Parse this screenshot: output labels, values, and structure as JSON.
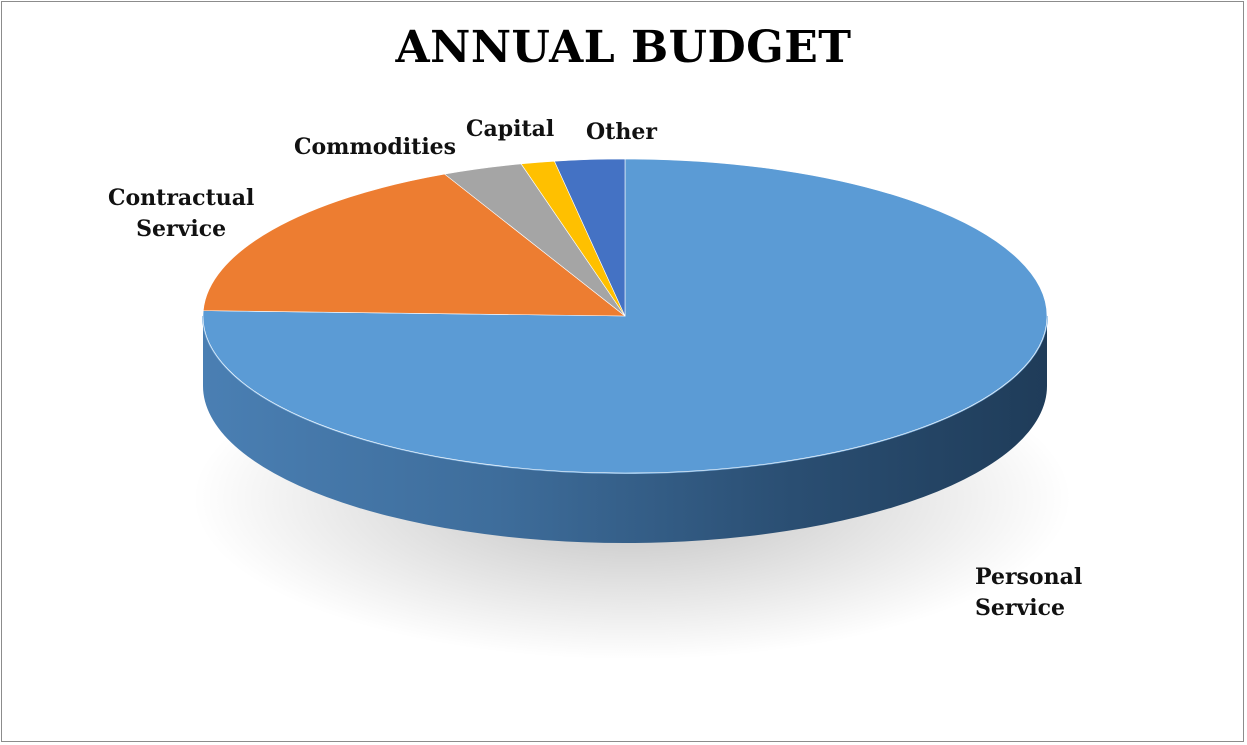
{
  "chart_data": {
    "type": "pie",
    "title": "ANNUAL BUDGET",
    "slices": [
      {
        "label_lines": [
          "Personal",
          "Service"
        ],
        "value": 76.3,
        "color": "#5b9bd5"
      },
      {
        "label_lines": [
          "Contractual",
          "Service"
        ],
        "value": 17.6,
        "color": "#ed7d31"
      },
      {
        "label_lines": [
          "Commodities"
        ],
        "value": 3.1,
        "color": "#a5a5a5"
      },
      {
        "label_lines": [
          "Capital"
        ],
        "value": 1.3,
        "color": "#ffc000"
      },
      {
        "label_lines": [
          "Other"
        ],
        "value": 2.7,
        "color": "#4472c4"
      }
    ],
    "style": "3d",
    "legend": "none"
  }
}
